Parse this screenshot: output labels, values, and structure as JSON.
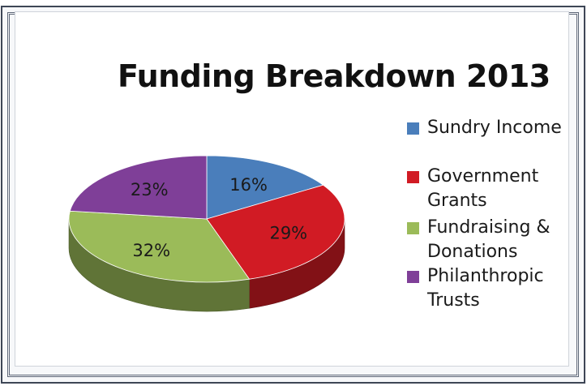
{
  "chart_data": {
    "type": "pie",
    "title": "Funding Breakdown 2013",
    "slices": [
      {
        "label": "Sundry Income",
        "value": 16,
        "value_label": "16%",
        "color": "#4a7ebb"
      },
      {
        "label": "Government Grants",
        "value": 29,
        "value_label": "29%",
        "color": "#d11b24"
      },
      {
        "label": "Fundraising & Donations",
        "value": 32,
        "value_label": "32%",
        "color": "#9bbb59"
      },
      {
        "label": "Philanthropic Trusts",
        "value": 23,
        "value_label": "23%",
        "color": "#7f3f98"
      }
    ],
    "legend_position": "right",
    "style": "3d"
  }
}
